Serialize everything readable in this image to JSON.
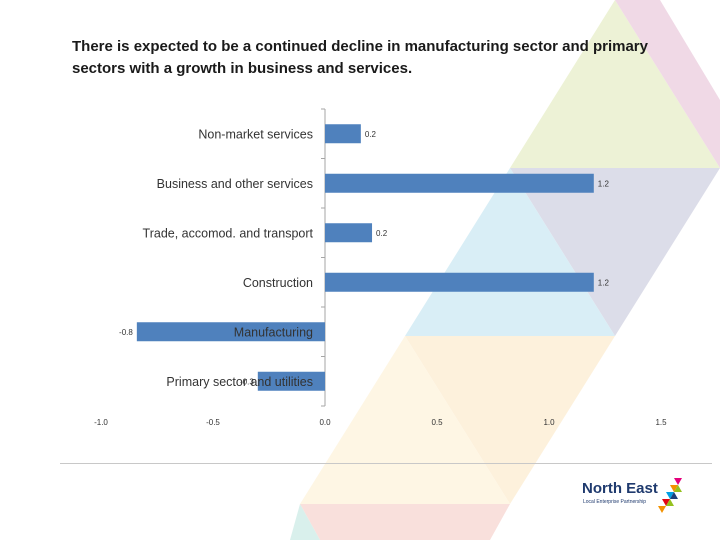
{
  "title": "There is expected to be a continued decline in manufacturing sector and primary sectors with a growth in business and services.",
  "chart_data": {
    "type": "bar",
    "orientation": "horizontal",
    "categories": [
      "Non-market services",
      "Business and other services",
      "Trade, accomod. and transport",
      "Construction",
      "Manufacturing",
      "Primary sector and utilities"
    ],
    "values": [
      0.16,
      1.2,
      0.21,
      1.2,
      -0.84,
      -0.3
    ],
    "value_labels": [
      "0.2",
      "1.2",
      "0.2",
      "1.2",
      "-0.8",
      "-0.3"
    ],
    "xlim": [
      -1.0,
      1.5
    ],
    "xticks": [
      "-1.0",
      "-0.5",
      "0.0",
      "0.5",
      "1.0",
      "1.5"
    ],
    "grid": false,
    "legend": "none",
    "bar_color": "#4f81bd"
  },
  "logo": {
    "name": "North East",
    "subtitle": "Local Enterprise Partnership"
  }
}
